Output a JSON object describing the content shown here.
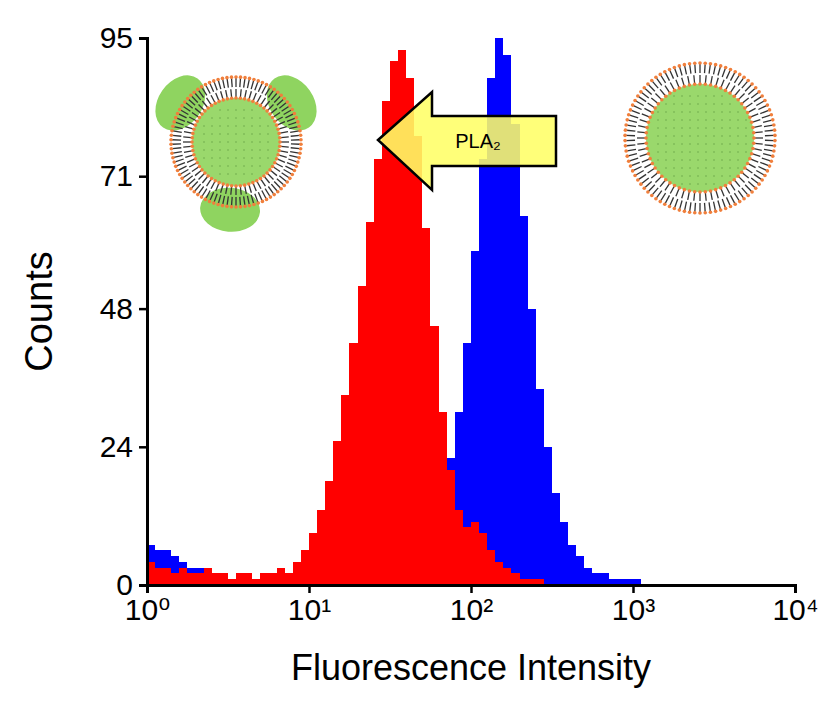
{
  "chart_data": {
    "type": "histogram",
    "x_label": "Fluorescence Intensity",
    "y_label": "Counts",
    "bins": [
      1,
      1.122,
      1.259,
      1.413,
      1.585,
      1.778,
      1.995,
      2.239,
      2.512,
      2.818,
      3.162,
      3.548,
      3.981,
      4.467,
      5.012,
      5.623,
      6.31,
      7.079,
      7.943,
      8.913,
      10,
      11.22,
      12.59,
      14.13,
      15.85,
      17.78,
      19.95,
      22.39,
      25.12,
      28.18,
      31.62,
      35.48,
      39.81,
      44.67,
      50.12,
      56.23,
      63.1,
      70.79,
      79.43,
      89.13,
      100,
      112.2,
      125.9,
      141.3,
      158.5,
      177.8,
      199.5,
      223.9,
      251.2,
      281.8,
      316.2,
      354.8,
      398.1,
      446.7,
      501.2,
      562.3,
      631,
      707.9,
      794.3,
      891.3,
      1000,
      1122,
      1259,
      1413,
      1585,
      1778,
      1995,
      2239,
      2512,
      2818,
      3162,
      3548,
      3981,
      4467,
      5012,
      5623,
      6310,
      7079,
      7943,
      8913,
      10000
    ],
    "series": [
      {
        "color": "#0000ff",
        "values": [
          7,
          6,
          6,
          5,
          4,
          3,
          3,
          2,
          2,
          2,
          1,
          1,
          1,
          1,
          1,
          1,
          1,
          0,
          1,
          1,
          0,
          0,
          1,
          0,
          1,
          1,
          1,
          1,
          1,
          2,
          2,
          3,
          4,
          5,
          6,
          9,
          14,
          22,
          30,
          42,
          58,
          74,
          88,
          95,
          92,
          80,
          64,
          48,
          34,
          24,
          16,
          11,
          7,
          5,
          3,
          2,
          2,
          1,
          1,
          1,
          1,
          0,
          0,
          0,
          0,
          0,
          0,
          0,
          0,
          0,
          0,
          0,
          0,
          0,
          0,
          0,
          0,
          0,
          0,
          0
        ]
      },
      {
        "color": "#ff0000",
        "values": [
          4,
          3,
          3,
          2,
          3,
          2,
          2,
          3,
          2,
          2,
          1,
          2,
          2,
          1,
          2,
          2,
          3,
          2,
          4,
          6,
          9,
          13,
          18,
          25,
          33,
          42,
          52,
          63,
          74,
          84,
          91,
          93,
          88,
          78,
          62,
          45,
          30,
          20,
          13,
          10,
          11,
          9,
          6,
          4,
          3,
          2,
          1,
          1,
          1,
          0,
          0,
          0,
          0,
          0,
          0,
          0,
          0,
          0,
          0,
          0,
          0,
          0,
          0,
          0,
          0,
          0,
          0,
          0,
          0,
          0,
          0,
          0,
          0,
          0,
          0,
          0,
          0,
          0,
          0,
          0
        ]
      }
    ],
    "xlim": [
      1,
      10000
    ],
    "xticks": [
      {
        "value": 1,
        "label": "10⁰"
      },
      {
        "value": 10,
        "label": "10¹"
      },
      {
        "value": 100,
        "label": "10²"
      },
      {
        "value": 1000,
        "label": "10³"
      },
      {
        "value": 10000,
        "label": "10⁴"
      }
    ],
    "ylim": [
      0,
      95
    ],
    "yticks": [
      0,
      24,
      48,
      71,
      95
    ],
    "log": "x",
    "grid": false,
    "annotations": [
      {
        "text": "PLA₂"
      }
    ]
  }
}
